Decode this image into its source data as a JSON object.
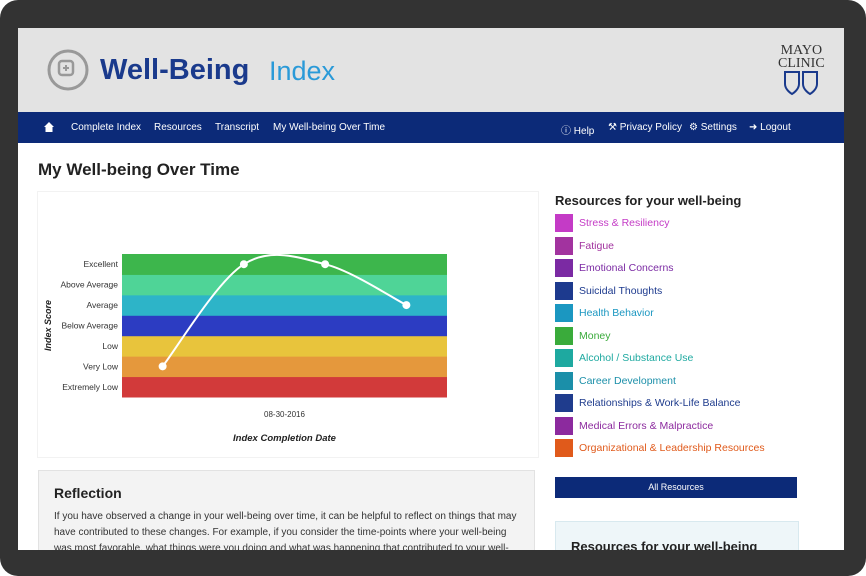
{
  "header": {
    "title_bold": "Well-Being",
    "title_light": "Index",
    "brand_lines": [
      "MAYO",
      "CLINIC"
    ]
  },
  "nav": {
    "left": [
      "Complete Index",
      "Resources",
      "Transcript",
      "My Well-being Over Time"
    ],
    "right": [
      "Help",
      "Privacy Policy",
      "Settings",
      "Logout"
    ]
  },
  "page_title": "My Well-being Over Time",
  "chart_data": {
    "type": "line",
    "x_label": "Index Completion Date",
    "y_label": "Index Score",
    "levels": [
      "Extremely Low",
      "Very Low",
      "Low",
      "Below Average",
      "Average",
      "Above Average",
      "Excellent"
    ],
    "level_colors": [
      "#d23a3a",
      "#e5983c",
      "#e8c43c",
      "#2c3cc2",
      "#2db4c8",
      "#4fd497",
      "#3db64c"
    ],
    "categories": [
      null,
      null,
      null,
      null
    ],
    "x_tick": "08-30-2016",
    "values": [
      1,
      6,
      6,
      4
    ],
    "color": "#ffffff"
  },
  "resources": {
    "title": "Resources for your well-being",
    "items": [
      {
        "label": "Stress & Resiliency",
        "color": "#c43bc6"
      },
      {
        "label": "Fatigue",
        "color": "#a2339f"
      },
      {
        "label": "Emotional Concerns",
        "color": "#7b2aa3"
      },
      {
        "label": "Suicidal Thoughts",
        "color": "#1d3a8e"
      },
      {
        "label": "Health Behavior",
        "color": "#1b97c1"
      },
      {
        "label": "Money",
        "color": "#3aab3b"
      },
      {
        "label": "Alcohol / Substance Use",
        "color": "#1ea9a0"
      },
      {
        "label": "Career Development",
        "color": "#1b8fa9"
      },
      {
        "label": "Relationships & Work-Life Balance",
        "color": "#1f3c8d"
      },
      {
        "label": "Medical Errors & Malpractice",
        "color": "#8c2a9e"
      },
      {
        "label": "Organizational & Leadership Resources",
        "color": "#e05a1b"
      }
    ],
    "button": "All Resources",
    "box_title": "Resources for your well-being"
  },
  "reflection": {
    "title": "Reflection",
    "text": "If you have observed a change in your well-being over time, it can be helpful to reflect on things that may have contributed to these changes. For example, if you consider the time-points where your well-being was most favorable, what things were you doing and what was happening that contributed to your well-"
  }
}
